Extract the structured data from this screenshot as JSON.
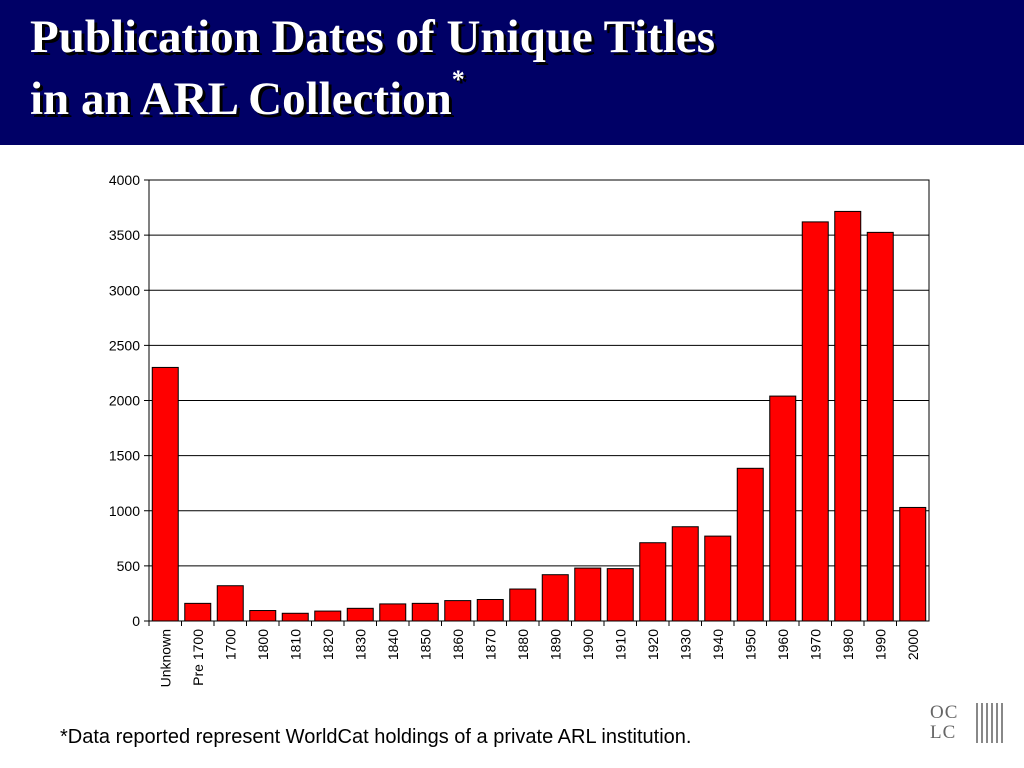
{
  "header": {
    "title_line1": "Publication Dates of Unique Titles",
    "title_line2": "in an ARL Collection",
    "title_marker": "*",
    "background_color": "#000066"
  },
  "chart_data": {
    "type": "bar",
    "categories": [
      "Unknown",
      "Pre 1700",
      "1700",
      "1800",
      "1810",
      "1820",
      "1830",
      "1840",
      "1850",
      "1860",
      "1870",
      "1880",
      "1890",
      "1900",
      "1910",
      "1920",
      "1930",
      "1940",
      "1950",
      "1960",
      "1970",
      "1980",
      "1990",
      "2000"
    ],
    "values": [
      2300,
      160,
      320,
      95,
      70,
      90,
      115,
      155,
      160,
      185,
      195,
      290,
      420,
      480,
      475,
      710,
      855,
      770,
      1385,
      2040,
      3620,
      3715,
      3525,
      1030
    ],
    "yticks": [
      0,
      500,
      1000,
      1500,
      2000,
      2500,
      3000,
      3500,
      4000
    ],
    "ylim": [
      0,
      4000
    ],
    "bar_color": "#ff0000",
    "grid": true,
    "legend": "none"
  },
  "footnote": "*Data reported represent WorldCat holdings of a private ARL institution.",
  "logo": {
    "line1": "OC",
    "line2": "LC"
  }
}
